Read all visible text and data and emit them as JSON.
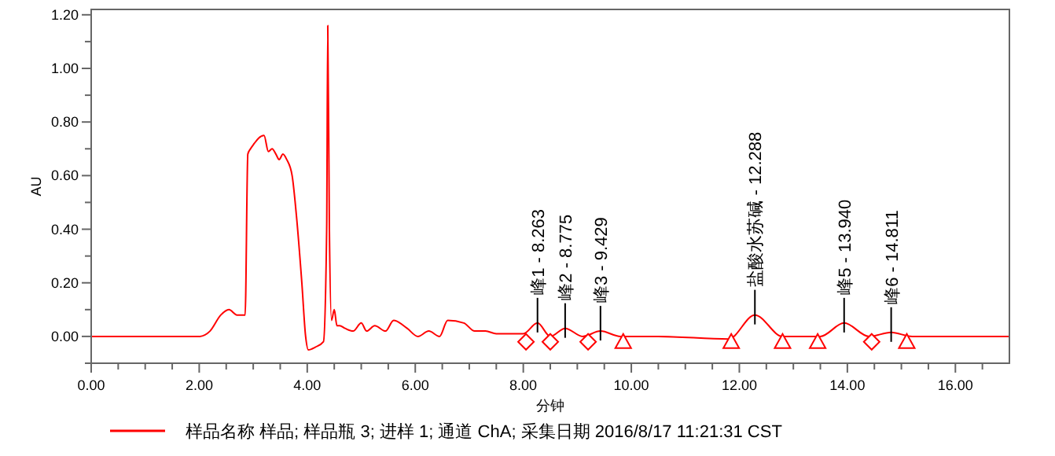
{
  "chart_data": {
    "type": "line",
    "xlabel": "分钟",
    "ylabel": "AU",
    "xlim": [
      0,
      17
    ],
    "ylim": [
      -0.1,
      1.22
    ],
    "xticks": [
      {
        "value": 0,
        "label": "0.00"
      },
      {
        "value": 0.5,
        "label": null
      },
      {
        "value": 1,
        "label": null
      },
      {
        "value": 1.5,
        "label": null
      },
      {
        "value": 2,
        "label": "2.00"
      },
      {
        "value": 2.5,
        "label": null
      },
      {
        "value": 3,
        "label": null
      },
      {
        "value": 3.5,
        "label": null
      },
      {
        "value": 4,
        "label": "4.00"
      },
      {
        "value": 4.5,
        "label": null
      },
      {
        "value": 5,
        "label": null
      },
      {
        "value": 5.5,
        "label": null
      },
      {
        "value": 6,
        "label": "6.00"
      },
      {
        "value": 6.5,
        "label": null
      },
      {
        "value": 7,
        "label": null
      },
      {
        "value": 7.5,
        "label": null
      },
      {
        "value": 8,
        "label": "8.00"
      },
      {
        "value": 8.5,
        "label": null
      },
      {
        "value": 9,
        "label": null
      },
      {
        "value": 9.5,
        "label": null
      },
      {
        "value": 10,
        "label": "10.00"
      },
      {
        "value": 10.5,
        "label": null
      },
      {
        "value": 11,
        "label": null
      },
      {
        "value": 11.5,
        "label": null
      },
      {
        "value": 12,
        "label": "12.00"
      },
      {
        "value": 12.5,
        "label": null
      },
      {
        "value": 13,
        "label": null
      },
      {
        "value": 13.5,
        "label": null
      },
      {
        "value": 14,
        "label": "14.00"
      },
      {
        "value": 14.5,
        "label": null
      },
      {
        "value": 15,
        "label": null
      },
      {
        "value": 15.5,
        "label": null
      },
      {
        "value": 16,
        "label": "16.00"
      },
      {
        "value": 16.5,
        "label": null
      }
    ],
    "yticks": [
      {
        "value": -0.1,
        "label": null
      },
      {
        "value": 0,
        "label": "0.00"
      },
      {
        "value": 0.1,
        "label": null
      },
      {
        "value": 0.2,
        "label": "0.20"
      },
      {
        "value": 0.3,
        "label": null
      },
      {
        "value": 0.4,
        "label": "0.40"
      },
      {
        "value": 0.5,
        "label": null
      },
      {
        "value": 0.6,
        "label": "0.60"
      },
      {
        "value": 0.7,
        "label": null
      },
      {
        "value": 0.8,
        "label": "0.80"
      },
      {
        "value": 0.9,
        "label": null
      },
      {
        "value": 1,
        "label": "1.00"
      },
      {
        "value": 1.1,
        "label": null
      },
      {
        "value": 1.2,
        "label": "1.20"
      }
    ],
    "grid": false,
    "legend": "bottom",
    "series": [
      {
        "name": "样品名称 样品; 样品瓶 3; 进样 1; 通道 ChA; 采集日期 2016/8/17 11:21:31 CST",
        "color": "#ff0000",
        "x": [
          0,
          1,
          2,
          2.2,
          2.4,
          2.55,
          2.7,
          2.85,
          2.9,
          2.95,
          3.02,
          3.1,
          3.2,
          3.28,
          3.35,
          3.42,
          3.48,
          3.55,
          3.62,
          3.72,
          3.8,
          3.9,
          3.97,
          4.02,
          4.15,
          4.3,
          4.36,
          4.38,
          4.41,
          4.45,
          4.5,
          4.55,
          4.6,
          4.7,
          4.85,
          5.0,
          5.1,
          5.25,
          5.45,
          5.6,
          5.85,
          6.05,
          6.25,
          6.45,
          6.6,
          6.9,
          7.1,
          7.3,
          7.5,
          7.7,
          8.0,
          8.263,
          8.5,
          8.775,
          9.1,
          9.429,
          9.8,
          10.5,
          11.8,
          12.288,
          12.8,
          13.5,
          13.94,
          14.4,
          14.811,
          15.2,
          17
        ],
        "values": [
          0,
          0,
          0,
          0.02,
          0.08,
          0.1,
          0.08,
          0.08,
          0.68,
          0.7,
          0.72,
          0.74,
          0.75,
          0.69,
          0.7,
          0.68,
          0.66,
          0.68,
          0.66,
          0.6,
          0.45,
          0.2,
          0.0,
          -0.05,
          -0.04,
          -0.02,
          0.4,
          1.16,
          0.4,
          0.06,
          0.1,
          0.04,
          0.04,
          0.03,
          0.02,
          0.05,
          0.02,
          0.04,
          0.02,
          0.06,
          0.03,
          0.0,
          0.02,
          0.0,
          0.06,
          0.05,
          0.02,
          0.02,
          0.01,
          0.01,
          0.01,
          0.05,
          0.0,
          0.03,
          0.0,
          0.02,
          0.0,
          0.0,
          -0.01,
          0.08,
          0.0,
          0.0,
          0.05,
          0.0,
          0.015,
          0.0,
          0.0
        ]
      },
      {
        "type": "scatter",
        "color": "#ff0000",
        "marker": "diamond",
        "x": [
          8.05,
          8.5,
          9.2,
          14.45
        ],
        "values": [
          -0.02,
          -0.02,
          -0.02,
          -0.02
        ]
      },
      {
        "type": "scatter",
        "color": "#ff0000",
        "marker": "triangle",
        "x": [
          9.85,
          11.85,
          12.8,
          13.45,
          15.1
        ],
        "values": [
          -0.02,
          -0.02,
          -0.02,
          -0.02,
          -0.02
        ]
      }
    ],
    "annotations": [
      {
        "text": "峰1 - 8.263",
        "x": 8.263,
        "y": 0.05
      },
      {
        "text": "峰2 - 8.775",
        "x": 8.775,
        "y": 0.03
      },
      {
        "text": "峰3 - 9.429",
        "x": 9.429,
        "y": 0.02
      },
      {
        "text": "盐酸水苏碱 - 12.288",
        "x": 12.288,
        "y": 0.08
      },
      {
        "text": "峰5 - 13.940",
        "x": 13.94,
        "y": 0.05
      },
      {
        "text": "峰6 - 14.811",
        "x": 14.811,
        "y": 0.015
      }
    ]
  }
}
